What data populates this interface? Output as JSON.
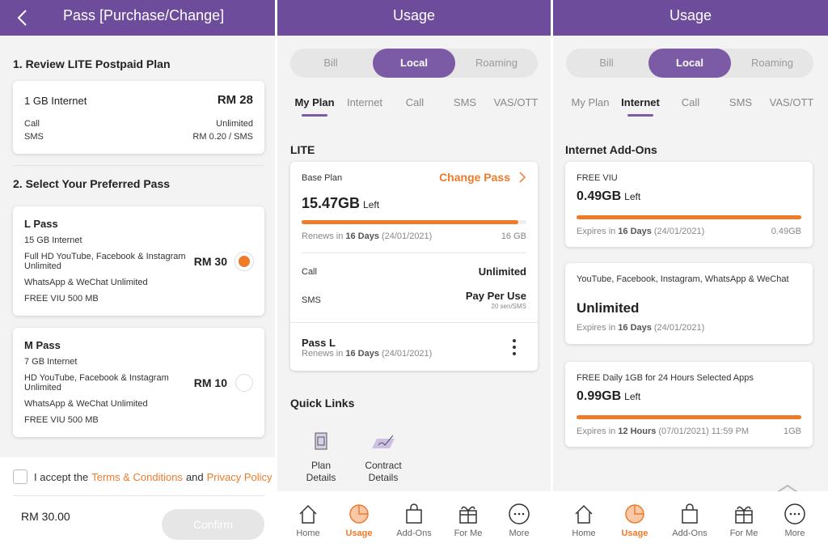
{
  "purchase": {
    "title": "Pass [Purchase/Change]",
    "review_heading": "1. Review LITE Postpaid Plan",
    "plan": {
      "internet": "1 GB Internet",
      "price": "RM 28",
      "rows": [
        {
          "label": "Call",
          "value": "Unlimited"
        },
        {
          "label": "SMS",
          "value": "RM 0.20 / SMS"
        }
      ]
    },
    "select_heading": "2. Select Your Preferred Pass",
    "passes": [
      {
        "name": "L Pass",
        "features": [
          "15 GB Internet",
          "Full HD YouTube, Facebook & Instagram Unlimited",
          "WhatsApp & WeChat Unlimited",
          "FREE VIU 500 MB"
        ],
        "price": "RM 30",
        "selected": true
      },
      {
        "name": "M Pass",
        "features": [
          "7 GB Internet",
          "HD YouTube, Facebook & Instagram Unlimited",
          "WhatsApp & WeChat Unlimited",
          "FREE VIU 500 MB"
        ],
        "price": "RM 10",
        "selected": false
      }
    ],
    "consent": {
      "text_1": "I accept the",
      "terms": "Terms & Conditions",
      "text_2": "and",
      "privacy": "Privacy Policy"
    },
    "total": "RM 30.00",
    "confirm": "Confirm"
  },
  "usage_title": "Usage",
  "tabs": [
    "Bill",
    "Local",
    "Roaming"
  ],
  "subtabs": [
    "My Plan",
    "Internet",
    "Call",
    "SMS",
    "VAS/OTT"
  ],
  "my_plan": {
    "heading": "LITE",
    "base_label": "Base Plan",
    "change": "Change Pass",
    "remaining": "15.47GB",
    "left": "Left",
    "renews_1": "Renews in",
    "renews_days": "16 Days",
    "renews_date": "(24/01/2021)",
    "total": "16 GB",
    "call_label": "Call",
    "call_value": "Unlimited",
    "sms_label": "SMS",
    "sms_value": "Pay Per Use",
    "sms_note": "20 sen/SMS",
    "pass": {
      "name": "Pass L",
      "renews_1": "Renews in",
      "renews_days": "16 Days",
      "renews_date": "(24/01/2021)"
    },
    "quick_links_heading": "Quick Links",
    "quick_links": [
      "Plan Details",
      "Contract Details"
    ]
  },
  "addons": {
    "heading": "Internet Add-Ons",
    "items": [
      {
        "name": "FREE VIU",
        "remaining": "0.49GB",
        "left": "Left",
        "expires_1": "Expires in",
        "expires_bold": "16 Days",
        "expires_rest": "(24/01/2021)",
        "total": "0.49GB"
      },
      {
        "name": "YouTube, Facebook, Instagram, WhatsApp & WeChat",
        "remaining": "Unlimited",
        "expires_1": "Expires in",
        "expires_bold": "16 Days",
        "expires_rest": "(24/01/2021)"
      },
      {
        "name": "FREE Daily 1GB for 24 Hours Selected Apps",
        "remaining": "0.99GB",
        "left": "Left",
        "expires_1": "Expires in",
        "expires_bold": "12 Hours",
        "expires_rest": "(07/01/2021) 11:59 PM",
        "total": "1GB"
      }
    ]
  },
  "nav": [
    "Home",
    "Usage",
    "Add-Ons",
    "For Me",
    "More"
  ]
}
